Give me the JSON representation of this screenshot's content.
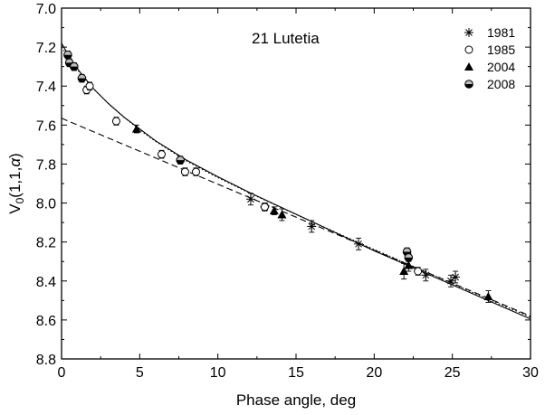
{
  "chart_data": {
    "type": "scatter",
    "title": "21 Lutetia",
    "xlabel": "Phase angle, deg",
    "ylabel": {
      "base": "V",
      "sub": "0",
      "rest": "(1,1,",
      "greek": "α",
      "close": ")"
    },
    "xlim": [
      0,
      30
    ],
    "ylim": [
      7.0,
      8.8
    ],
    "y_inverted": true,
    "grid": false,
    "legend_position": "top-right",
    "x_ticks": [
      0,
      5,
      10,
      15,
      20,
      25,
      30
    ],
    "x_tick_labels": [
      "0",
      "5",
      "10",
      "15",
      "20",
      "25",
      "30"
    ],
    "y_ticks": [
      7.0,
      7.2,
      7.4,
      7.6,
      7.8,
      8.0,
      8.2,
      8.4,
      8.6,
      8.8
    ],
    "y_tick_labels": [
      "7.0",
      "7.2",
      "7.4",
      "7.6",
      "7.8",
      "8.0",
      "8.2",
      "8.4",
      "8.6",
      "8.8"
    ],
    "series": [
      {
        "name": "1981",
        "marker": "asterisk",
        "points": [
          [
            12.1,
            7.98,
            0.03
          ],
          [
            13.0,
            8.02,
            0.02
          ],
          [
            16.0,
            8.12,
            0.03
          ],
          [
            19.0,
            8.21,
            0.03
          ],
          [
            23.3,
            8.37,
            0.03
          ],
          [
            24.9,
            8.4,
            0.03
          ],
          [
            25.2,
            8.38,
            0.03
          ]
        ]
      },
      {
        "name": "1985",
        "marker": "open-circle",
        "points": [
          [
            1.6,
            7.42,
            0.02
          ],
          [
            1.8,
            7.4,
            0.02
          ],
          [
            3.5,
            7.58,
            0.02
          ],
          [
            6.4,
            7.75,
            0.02
          ],
          [
            7.9,
            7.84,
            0.02
          ],
          [
            8.6,
            7.84,
            0.02
          ],
          [
            13.0,
            8.02,
            0.02
          ],
          [
            22.8,
            8.35,
            0.02
          ]
        ]
      },
      {
        "name": "2004",
        "marker": "filled-triangle",
        "points": [
          [
            4.8,
            7.62,
            0.02
          ],
          [
            13.6,
            8.04,
            0.02
          ],
          [
            14.1,
            8.06,
            0.03
          ],
          [
            21.9,
            8.35,
            0.04
          ],
          [
            22.2,
            8.32,
            0.03
          ],
          [
            27.3,
            8.48,
            0.03
          ]
        ]
      },
      {
        "name": "2008",
        "marker": "half-filled-circle",
        "points": [
          [
            0.4,
            7.24,
            0.02
          ],
          [
            0.5,
            7.28,
            0.02
          ],
          [
            0.8,
            7.3,
            0.02
          ],
          [
            1.3,
            7.36,
            0.02
          ],
          [
            7.6,
            7.78,
            0.02
          ],
          [
            22.1,
            8.25,
            0.02
          ],
          [
            22.2,
            8.28,
            0.02
          ]
        ]
      }
    ],
    "fits": [
      {
        "style": "solid",
        "x": [
          0,
          0.5,
          1,
          2,
          3,
          4,
          5,
          6,
          8,
          10,
          12,
          14,
          16,
          18,
          20,
          22,
          24,
          26,
          28,
          30
        ],
        "y": [
          7.18,
          7.25,
          7.31,
          7.41,
          7.49,
          7.56,
          7.62,
          7.68,
          7.78,
          7.865,
          7.945,
          8.02,
          8.095,
          8.17,
          8.245,
          8.315,
          8.385,
          8.455,
          8.525,
          8.595
        ]
      },
      {
        "style": "dotted",
        "x": [
          0,
          0.5,
          1,
          2,
          3,
          4,
          5,
          6,
          8,
          10,
          12,
          14,
          16,
          18,
          20,
          22,
          24,
          26,
          28,
          30
        ],
        "y": [
          7.2,
          7.26,
          7.315,
          7.41,
          7.49,
          7.56,
          7.625,
          7.683,
          7.785,
          7.87,
          7.948,
          8.022,
          8.095,
          8.167,
          8.238,
          8.308,
          8.378,
          8.448,
          8.518,
          8.585
        ]
      },
      {
        "style": "dashed",
        "x": [
          0,
          30
        ],
        "y": [
          7.565,
          8.58
        ]
      }
    ]
  }
}
